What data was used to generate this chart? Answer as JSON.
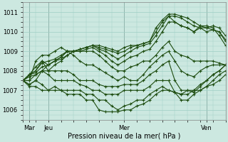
{
  "xlabel": "Pression niveau de la mer( hPa )",
  "ylim": [
    1005.5,
    1011.5
  ],
  "xlim": [
    0,
    96
  ],
  "yticks": [
    1006,
    1007,
    1008,
    1009,
    1010,
    1011
  ],
  "xtick_positions": [
    3,
    12,
    48,
    87
  ],
  "xtick_labels": [
    "Mar",
    "Jeu",
    "Mer",
    "Ven"
  ],
  "bg_color": "#cce8e0",
  "grid_color": "#9ecfc4",
  "line_color": "#1e4d10",
  "lines": [
    [
      0,
      1007.5,
      3,
      1007.8,
      6,
      1008.2,
      9,
      1008.5,
      12,
      1008.0,
      15,
      1008.3,
      18,
      1008.5,
      21,
      1008.8,
      24,
      1009.0,
      27,
      1009.1,
      30,
      1009.2,
      33,
      1009.3,
      36,
      1009.3,
      39,
      1009.2,
      42,
      1009.1,
      45,
      1009.0,
      48,
      1009.2,
      51,
      1009.3,
      54,
      1009.3,
      57,
      1009.4,
      60,
      1009.5,
      63,
      1010.0,
      66,
      1010.5,
      69,
      1010.8,
      72,
      1010.8,
      75,
      1010.7,
      78,
      1010.5,
      81,
      1010.3,
      84,
      1010.2,
      87,
      1010.0,
      90,
      1010.1,
      93,
      1010.0,
      96,
      1009.6
    ],
    [
      0,
      1007.5,
      3,
      1007.8,
      6,
      1008.0,
      9,
      1008.5,
      12,
      1008.3,
      15,
      1008.5,
      18,
      1008.7,
      21,
      1009.0,
      24,
      1009.0,
      27,
      1009.1,
      30,
      1009.2,
      33,
      1009.3,
      36,
      1009.2,
      39,
      1009.1,
      42,
      1009.0,
      45,
      1008.9,
      48,
      1009.0,
      51,
      1009.2,
      54,
      1009.3,
      57,
      1009.4,
      60,
      1009.5,
      63,
      1010.2,
      66,
      1010.6,
      69,
      1010.9,
      72,
      1010.9,
      75,
      1010.8,
      78,
      1010.7,
      81,
      1010.5,
      84,
      1010.3,
      87,
      1010.2,
      90,
      1010.3,
      93,
      1010.2,
      96,
      1009.8
    ],
    [
      0,
      1007.5,
      3,
      1007.8,
      6,
      1008.0,
      9,
      1008.4,
      12,
      1008.5,
      15,
      1008.6,
      18,
      1008.8,
      21,
      1009.0,
      24,
      1009.0,
      27,
      1009.1,
      30,
      1009.2,
      33,
      1009.3,
      36,
      1009.1,
      39,
      1009.0,
      42,
      1008.8,
      45,
      1008.6,
      48,
      1008.8,
      51,
      1009.0,
      54,
      1009.2,
      57,
      1009.3,
      60,
      1009.4,
      63,
      1009.8,
      66,
      1010.3,
      69,
      1010.8,
      72,
      1010.5,
      75,
      1010.3,
      78,
      1010.2,
      81,
      1010.0,
      84,
      1010.2,
      87,
      1010.2,
      90,
      1010.1,
      93,
      1010.0,
      96,
      1009.5
    ],
    [
      0,
      1007.5,
      3,
      1007.8,
      6,
      1007.9,
      9,
      1008.2,
      12,
      1008.3,
      15,
      1008.5,
      18,
      1008.6,
      21,
      1008.8,
      24,
      1009.0,
      27,
      1009.0,
      30,
      1009.1,
      33,
      1009.2,
      36,
      1009.0,
      39,
      1008.8,
      42,
      1008.5,
      45,
      1008.3,
      48,
      1008.5,
      51,
      1008.7,
      54,
      1008.8,
      57,
      1009.0,
      60,
      1009.1,
      63,
      1009.5,
      66,
      1010.0,
      69,
      1010.5,
      72,
      1010.5,
      75,
      1010.3,
      78,
      1010.2,
      81,
      1010.0,
      84,
      1010.3,
      87,
      1010.3,
      90,
      1010.2,
      93,
      1009.8,
      96,
      1009.3
    ],
    [
      0,
      1007.5,
      3,
      1007.7,
      6,
      1007.8,
      9,
      1008.0,
      12,
      1008.3,
      15,
      1008.5,
      18,
      1008.7,
      21,
      1009.0,
      24,
      1009.0,
      27,
      1009.0,
      30,
      1009.0,
      33,
      1009.0,
      36,
      1008.8,
      39,
      1008.5,
      42,
      1008.2,
      45,
      1008.0,
      48,
      1008.0,
      51,
      1008.2,
      54,
      1008.3,
      57,
      1008.5,
      60,
      1008.5,
      63,
      1008.8,
      66,
      1009.2,
      69,
      1009.5,
      72,
      1009.0,
      75,
      1008.8,
      78,
      1008.7,
      81,
      1008.5,
      84,
      1008.5,
      87,
      1008.5,
      90,
      1008.5,
      93,
      1008.4,
      96,
      1008.3
    ],
    [
      0,
      1007.5,
      3,
      1007.5,
      6,
      1008.5,
      9,
      1008.8,
      12,
      1008.8,
      15,
      1009.0,
      18,
      1009.2,
      21,
      1009.0,
      24,
      1008.8,
      27,
      1008.5,
      30,
      1008.3,
      33,
      1008.3,
      36,
      1008.1,
      39,
      1007.9,
      42,
      1007.7,
      45,
      1007.5,
      48,
      1007.7,
      51,
      1007.5,
      54,
      1007.5,
      57,
      1007.8,
      60,
      1008.2,
      63,
      1008.5,
      66,
      1008.8,
      69,
      1009.0,
      72,
      1008.5,
      75,
      1008.0,
      78,
      1007.8,
      81,
      1007.7,
      84,
      1008.0,
      87,
      1008.2,
      90,
      1008.3,
      93,
      1008.3,
      96,
      1008.3
    ],
    [
      0,
      1007.5,
      3,
      1007.5,
      6,
      1007.8,
      9,
      1008.0,
      12,
      1008.0,
      15,
      1008.0,
      18,
      1008.0,
      21,
      1008.0,
      24,
      1007.8,
      27,
      1007.5,
      30,
      1007.5,
      33,
      1007.5,
      36,
      1007.3,
      39,
      1007.2,
      42,
      1007.2,
      45,
      1007.2,
      48,
      1007.3,
      51,
      1007.3,
      54,
      1007.3,
      57,
      1007.5,
      60,
      1007.8,
      63,
      1008.0,
      66,
      1008.3,
      69,
      1008.5,
      72,
      1007.5,
      75,
      1007.0,
      78,
      1007.0,
      81,
      1006.9,
      84,
      1007.2,
      87,
      1007.5,
      90,
      1007.8,
      93,
      1008.0,
      96,
      1008.3
    ],
    [
      0,
      1007.5,
      3,
      1007.3,
      6,
      1007.5,
      9,
      1008.0,
      12,
      1007.8,
      15,
      1007.5,
      18,
      1007.5,
      21,
      1007.5,
      24,
      1007.5,
      27,
      1007.3,
      30,
      1007.2,
      33,
      1007.0,
      36,
      1007.0,
      39,
      1006.8,
      42,
      1006.8,
      45,
      1006.8,
      48,
      1007.0,
      51,
      1007.0,
      54,
      1007.0,
      57,
      1007.0,
      60,
      1007.2,
      63,
      1007.5,
      66,
      1007.5,
      69,
      1007.5,
      72,
      1006.9,
      75,
      1006.8,
      78,
      1007.0,
      81,
      1007.0,
      84,
      1007.3,
      87,
      1007.5,
      90,
      1007.8,
      93,
      1008.0,
      96,
      1008.3
    ],
    [
      0,
      1007.5,
      3,
      1007.3,
      6,
      1007.5,
      9,
      1007.3,
      12,
      1007.0,
      15,
      1007.2,
      18,
      1007.0,
      21,
      1007.0,
      24,
      1007.0,
      27,
      1007.0,
      30,
      1006.8,
      33,
      1006.8,
      36,
      1006.5,
      39,
      1006.5,
      42,
      1006.2,
      45,
      1006.0,
      48,
      1006.2,
      51,
      1006.3,
      54,
      1006.5,
      57,
      1006.5,
      60,
      1006.8,
      63,
      1007.0,
      66,
      1007.2,
      69,
      1007.0,
      72,
      1006.9,
      75,
      1006.8,
      78,
      1006.8,
      81,
      1007.0,
      84,
      1007.0,
      87,
      1007.2,
      90,
      1007.3,
      93,
      1007.5,
      96,
      1007.8
    ],
    [
      0,
      1007.5,
      3,
      1007.2,
      6,
      1007.2,
      9,
      1007.0,
      12,
      1007.0,
      15,
      1007.0,
      18,
      1007.0,
      21,
      1006.8,
      24,
      1006.8,
      27,
      1006.8,
      30,
      1006.5,
      33,
      1006.5,
      36,
      1006.0,
      39,
      1005.9,
      42,
      1005.9,
      45,
      1005.9,
      48,
      1006.0,
      51,
      1006.0,
      54,
      1006.2,
      57,
      1006.3,
      60,
      1006.5,
      63,
      1006.8,
      66,
      1007.0,
      69,
      1007.0,
      72,
      1006.9,
      75,
      1006.5,
      78,
      1006.5,
      81,
      1006.8,
      84,
      1007.0,
      87,
      1007.2,
      90,
      1007.5,
      93,
      1007.8,
      96,
      1008.0
    ]
  ]
}
